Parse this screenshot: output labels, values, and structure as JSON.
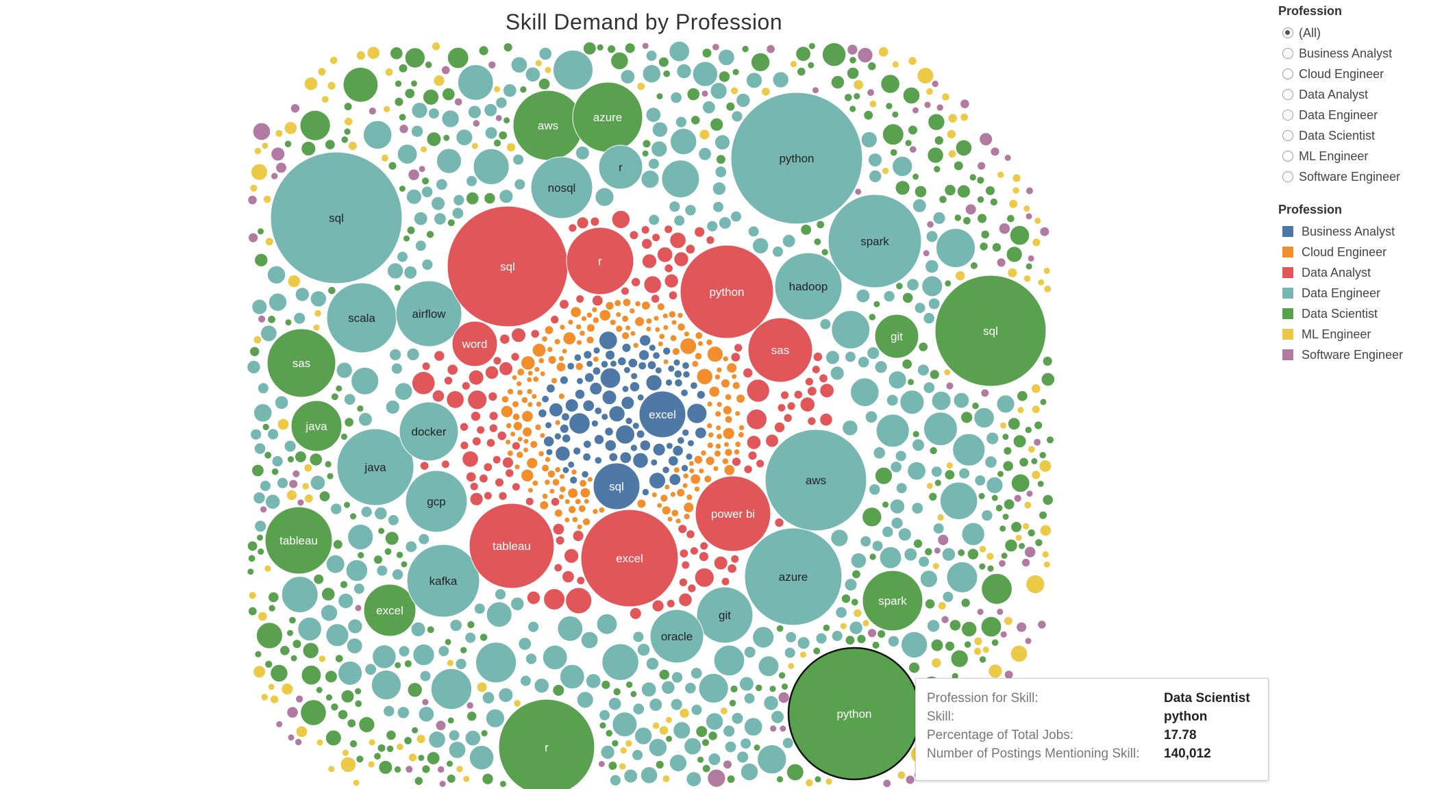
{
  "title": "Skill Demand by Profession",
  "filter": {
    "title": "Profession",
    "options": [
      "(All)",
      "Business Analyst",
      "Cloud Engineer",
      "Data Analyst",
      "Data Engineer",
      "Data Scientist",
      "ML Engineer",
      "Software Engineer"
    ],
    "selected": "(All)"
  },
  "legend": {
    "title": "Profession",
    "items": [
      {
        "label": "Business Analyst",
        "color": "#4e79a7"
      },
      {
        "label": "Cloud Engineer",
        "color": "#f28e2b"
      },
      {
        "label": "Data Analyst",
        "color": "#e15759"
      },
      {
        "label": "Data Engineer",
        "color": "#76b7b2"
      },
      {
        "label": "Data Scientist",
        "color": "#59a14f"
      },
      {
        "label": "ML Engineer",
        "color": "#edc948"
      },
      {
        "label": "Software Engineer",
        "color": "#b07aa1"
      }
    ]
  },
  "tooltip": {
    "rows": [
      {
        "key": "Profession for Skill:",
        "value": "Data Scientist"
      },
      {
        "key": "Skill:",
        "value": "python"
      },
      {
        "key": "Percentage of Total Jobs:",
        "value": "17.78"
      },
      {
        "key": "Number of Postings Mentioning Skill:",
        "value": "140,012"
      }
    ]
  },
  "chart_data": {
    "type": "bubble",
    "title": "Skill Demand by Profession",
    "size_measure": "Number of Postings Mentioning Skill",
    "color_by": "Profession",
    "highlighted": {
      "profession": "Data Scientist",
      "skill": "python",
      "percentage": 17.78,
      "postings": 140012
    },
    "labeled_bubbles": [
      {
        "profession": "Data Scientist",
        "skill": "python",
        "postings": 140012
      },
      {
        "profession": "Data Scientist",
        "skill": "sql"
      },
      {
        "profession": "Data Scientist",
        "skill": "r"
      },
      {
        "profession": "Data Scientist",
        "skill": "aws"
      },
      {
        "profession": "Data Scientist",
        "skill": "azure"
      },
      {
        "profession": "Data Scientist",
        "skill": "sas"
      },
      {
        "profession": "Data Scientist",
        "skill": "java"
      },
      {
        "profession": "Data Scientist",
        "skill": "tableau"
      },
      {
        "profession": "Data Scientist",
        "skill": "excel"
      },
      {
        "profession": "Data Scientist",
        "skill": "git"
      },
      {
        "profession": "Data Scientist",
        "skill": "spark"
      },
      {
        "profession": "Data Engineer",
        "skill": "python"
      },
      {
        "profession": "Data Engineer",
        "skill": "sql"
      },
      {
        "profession": "Data Engineer",
        "skill": "spark"
      },
      {
        "profession": "Data Engineer",
        "skill": "aws"
      },
      {
        "profession": "Data Engineer",
        "skill": "azure"
      },
      {
        "profession": "Data Engineer",
        "skill": "scala"
      },
      {
        "profession": "Data Engineer",
        "skill": "airflow"
      },
      {
        "profession": "Data Engineer",
        "skill": "java"
      },
      {
        "profession": "Data Engineer",
        "skill": "kafka"
      },
      {
        "profession": "Data Engineer",
        "skill": "nosql"
      },
      {
        "profession": "Data Engineer",
        "skill": "hadoop"
      },
      {
        "profession": "Data Engineer",
        "skill": "gcp"
      },
      {
        "profession": "Data Engineer",
        "skill": "docker"
      },
      {
        "profession": "Data Engineer",
        "skill": "git"
      },
      {
        "profession": "Data Engineer",
        "skill": "oracle"
      },
      {
        "profession": "Data Engineer",
        "skill": "r"
      },
      {
        "profession": "Data Analyst",
        "skill": "sql"
      },
      {
        "profession": "Data Analyst",
        "skill": "excel"
      },
      {
        "profession": "Data Analyst",
        "skill": "python"
      },
      {
        "profession": "Data Analyst",
        "skill": "tableau"
      },
      {
        "profession": "Data Analyst",
        "skill": "power bi"
      },
      {
        "profession": "Data Analyst",
        "skill": "r"
      },
      {
        "profession": "Data Analyst",
        "skill": "sas"
      },
      {
        "profession": "Data Analyst",
        "skill": "word"
      },
      {
        "profession": "Business Analyst",
        "skill": "excel"
      },
      {
        "profession": "Business Analyst",
        "skill": "sql"
      }
    ]
  }
}
